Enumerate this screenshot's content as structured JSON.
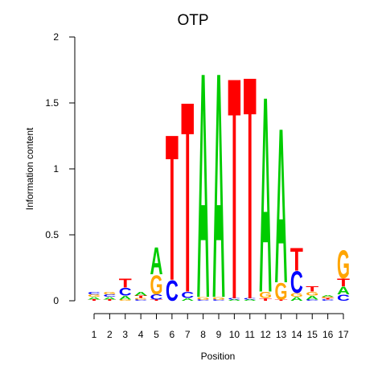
{
  "chart_data": {
    "type": "sequence-logo",
    "title": "OTP",
    "xlabel": "Position",
    "ylabel": "Information content",
    "ylim": [
      0,
      2
    ],
    "yticks": [
      "0",
      "0.5",
      "1",
      "1.5",
      "2"
    ],
    "xticks": [
      "1",
      "2",
      "3",
      "4",
      "5",
      "6",
      "7",
      "8",
      "9",
      "10",
      "11",
      "12",
      "13",
      "14",
      "15",
      "16",
      "17"
    ],
    "colors": {
      "A": "#00cc00",
      "C": "#0000ff",
      "G": "#ffa500",
      "T": "#ff0000"
    },
    "positions": [
      {
        "pos": 1,
        "letters": [
          {
            "l": "T",
            "v": 0.01
          },
          {
            "l": "A",
            "v": 0.02
          },
          {
            "l": "G",
            "v": 0.02
          },
          {
            "l": "C",
            "v": 0.02
          }
        ]
      },
      {
        "pos": 2,
        "letters": [
          {
            "l": "T",
            "v": 0.01
          },
          {
            "l": "A",
            "v": 0.02
          },
          {
            "l": "C",
            "v": 0.02
          },
          {
            "l": "G",
            "v": 0.02
          }
        ]
      },
      {
        "pos": 3,
        "letters": [
          {
            "l": "G",
            "v": 0.01
          },
          {
            "l": "A",
            "v": 0.03
          },
          {
            "l": "C",
            "v": 0.06
          },
          {
            "l": "T",
            "v": 0.07
          }
        ]
      },
      {
        "pos": 4,
        "letters": [
          {
            "l": "C",
            "v": 0.01
          },
          {
            "l": "G",
            "v": 0.01
          },
          {
            "l": "T",
            "v": 0.02
          },
          {
            "l": "A",
            "v": 0.03
          }
        ]
      },
      {
        "pos": 5,
        "letters": [
          {
            "l": "T",
            "v": 0.01
          },
          {
            "l": "C",
            "v": 0.04
          },
          {
            "l": "G",
            "v": 0.15
          },
          {
            "l": "A",
            "v": 0.21
          }
        ]
      },
      {
        "pos": 6,
        "letters": [
          {
            "l": "C",
            "v": 0.16
          },
          {
            "l": "T",
            "v": 1.14
          }
        ]
      },
      {
        "pos": 7,
        "letters": [
          {
            "l": "A",
            "v": 0.02
          },
          {
            "l": "C",
            "v": 0.05
          },
          {
            "l": "T",
            "v": 1.49
          }
        ]
      },
      {
        "pos": 8,
        "letters": [
          {
            "l": "C",
            "v": 0.01
          },
          {
            "l": "G",
            "v": 0.02
          },
          {
            "l": "A",
            "v": 1.76
          }
        ]
      },
      {
        "pos": 9,
        "letters": [
          {
            "l": "C",
            "v": 0.01
          },
          {
            "l": "G",
            "v": 0.02
          },
          {
            "l": "A",
            "v": 1.76
          }
        ]
      },
      {
        "pos": 10,
        "letters": [
          {
            "l": "A",
            "v": 0.01
          },
          {
            "l": "C",
            "v": 0.01
          },
          {
            "l": "T",
            "v": 1.73
          }
        ]
      },
      {
        "pos": 11,
        "letters": [
          {
            "l": "A",
            "v": 0.01
          },
          {
            "l": "C",
            "v": 0.01
          },
          {
            "l": "T",
            "v": 1.74
          }
        ]
      },
      {
        "pos": 12,
        "letters": [
          {
            "l": "T",
            "v": 0.02
          },
          {
            "l": "G",
            "v": 0.05
          },
          {
            "l": "A",
            "v": 1.53
          }
        ]
      },
      {
        "pos": 13,
        "letters": [
          {
            "l": "T",
            "v": 0.01
          },
          {
            "l": "G",
            "v": 0.13
          },
          {
            "l": "A",
            "v": 1.21
          }
        ]
      },
      {
        "pos": 14,
        "letters": [
          {
            "l": "A",
            "v": 0.03
          },
          {
            "l": "G",
            "v": 0.03
          },
          {
            "l": "C",
            "v": 0.17
          },
          {
            "l": "T",
            "v": 0.18
          }
        ]
      },
      {
        "pos": 15,
        "letters": [
          {
            "l": "C",
            "v": 0.01
          },
          {
            "l": "A",
            "v": 0.03
          },
          {
            "l": "G",
            "v": 0.03
          },
          {
            "l": "T",
            "v": 0.04
          }
        ]
      },
      {
        "pos": 16,
        "letters": [
          {
            "l": "C",
            "v": 0.01
          },
          {
            "l": "T",
            "v": 0.01
          },
          {
            "l": "G",
            "v": 0.01
          },
          {
            "l": "A",
            "v": 0.01
          }
        ]
      },
      {
        "pos": 17,
        "letters": [
          {
            "l": "C",
            "v": 0.05
          },
          {
            "l": "A",
            "v": 0.06
          },
          {
            "l": "T",
            "v": 0.06
          },
          {
            "l": "G",
            "v": 0.22
          }
        ]
      }
    ]
  }
}
